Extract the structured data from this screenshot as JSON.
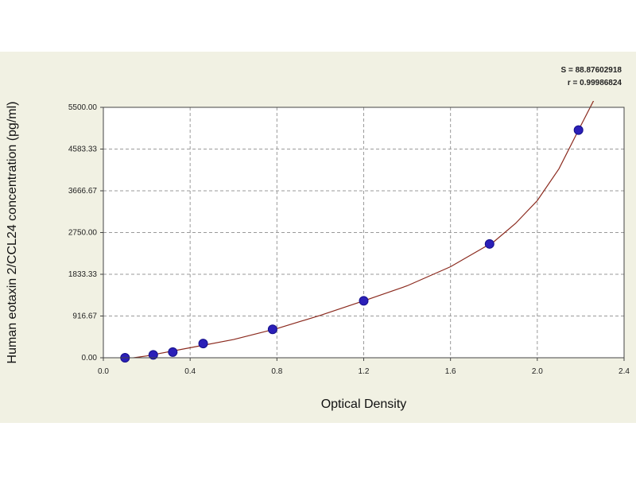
{
  "chart_data": {
    "type": "scatter",
    "title": "",
    "xlabel": "Optical Density",
    "ylabel": "Human eotaxin 2/CCL24 concentration (pg/ml)",
    "xlim": [
      0.0,
      2.4
    ],
    "ylim": [
      0,
      5500
    ],
    "x_ticks": [
      "0.0",
      "0.4",
      "0.8",
      "1.2",
      "1.6",
      "2.0",
      "2.4"
    ],
    "y_ticks": [
      "0.00",
      "916.67",
      "1833.33",
      "2750.00",
      "3666.67",
      "4583.33",
      "5500.00"
    ],
    "stats": [
      "S = 88.87602918",
      "r = 0.99986824"
    ],
    "grid": true,
    "legend": "none",
    "colors": {
      "points": "#2b1fb8",
      "curve": "#8b2a1e",
      "frame": "#444444",
      "grid": "#9a9a9a",
      "plot_bg": "#ffffff",
      "panel_bg": "#f1f1e3"
    },
    "series": [
      {
        "points": [
          {
            "x": 0.1,
            "y": 0
          },
          {
            "x": 0.23,
            "y": 62.5
          },
          {
            "x": 0.32,
            "y": 125
          },
          {
            "x": 0.46,
            "y": 312.5
          },
          {
            "x": 0.78,
            "y": 625
          },
          {
            "x": 1.2,
            "y": 1250
          },
          {
            "x": 1.78,
            "y": 2500
          },
          {
            "x": 2.19,
            "y": 5000
          }
        ],
        "fit_curve": [
          {
            "x": 0.05,
            "y": -60
          },
          {
            "x": 0.2,
            "y": 40
          },
          {
            "x": 0.4,
            "y": 220
          },
          {
            "x": 0.6,
            "y": 400
          },
          {
            "x": 0.8,
            "y": 640
          },
          {
            "x": 1.0,
            "y": 930
          },
          {
            "x": 1.2,
            "y": 1250
          },
          {
            "x": 1.4,
            "y": 1580
          },
          {
            "x": 1.6,
            "y": 2000
          },
          {
            "x": 1.8,
            "y": 2550
          },
          {
            "x": 1.9,
            "y": 2950
          },
          {
            "x": 2.0,
            "y": 3450
          },
          {
            "x": 2.1,
            "y": 4150
          },
          {
            "x": 2.19,
            "y": 5000
          },
          {
            "x": 2.26,
            "y": 5650
          }
        ]
      }
    ]
  }
}
